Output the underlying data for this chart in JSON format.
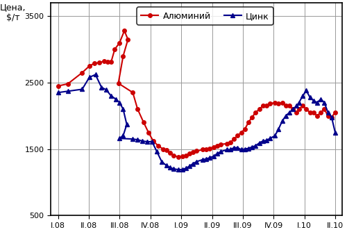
{
  "ylabel": "Цена,\n$/т",
  "ylim": [
    500,
    3700
  ],
  "yticks": [
    500,
    1500,
    2500,
    3500
  ],
  "x_labels": [
    "I.08",
    "II.08",
    "III.08",
    "IV.08",
    "I.09",
    "II.09",
    "III.09",
    "IV.09",
    "I.10",
    "II.10"
  ],
  "aluminum_color": "#cc0000",
  "zinc_color": "#00008b",
  "background_color": "#ffffff",
  "plot_bg_color": "#ffffff",
  "grid_color": "#999999",
  "legend_label_al": "Алюминий",
  "legend_label_zn": "Цинк",
  "al_x": [
    0,
    0.4,
    1.0,
    1.3,
    1.5,
    1.7,
    1.9,
    2.05,
    2.2,
    2.35,
    2.55,
    2.75,
    2.9,
    2.7,
    2.5,
    3.1,
    3.3,
    3.55,
    3.75,
    3.95,
    4.15,
    4.35,
    4.5,
    4.65,
    4.8,
    5.0,
    5.15,
    5.3,
    5.45,
    5.6,
    5.75,
    6.0,
    6.15,
    6.3,
    6.45,
    6.6,
    6.75,
    7.0,
    7.15,
    7.3,
    7.45,
    7.6,
    7.75,
    7.9,
    8.05,
    8.2,
    8.35,
    8.5,
    8.65,
    8.8,
    9.0,
    9.15,
    9.3,
    9.45,
    9.6,
    9.75,
    9.9,
    10.0,
    10.15,
    10.3,
    10.45,
    10.6,
    10.75,
    10.9,
    11.05,
    11.2,
    11.35,
    11.5
  ],
  "al_y": [
    2450,
    2480,
    2650,
    2750,
    2790,
    2800,
    2820,
    2810,
    2810,
    3000,
    3100,
    3280,
    3150,
    2900,
    2490,
    2350,
    2100,
    1900,
    1750,
    1620,
    1550,
    1500,
    1480,
    1440,
    1400,
    1380,
    1390,
    1400,
    1430,
    1450,
    1470,
    1490,
    1500,
    1510,
    1530,
    1550,
    1570,
    1580,
    1600,
    1650,
    1700,
    1750,
    1800,
    1900,
    1980,
    2050,
    2100,
    2150,
    2150,
    2180,
    2200,
    2180,
    2200,
    2150,
    2150,
    2100,
    2050,
    2100,
    2150,
    2100,
    2050,
    2050,
    2000,
    2050,
    2100,
    2000,
    1980,
    2050
  ],
  "zn_x": [
    0,
    0.4,
    1.0,
    1.3,
    1.55,
    1.8,
    2.0,
    2.2,
    2.4,
    2.55,
    2.7,
    2.85,
    2.7,
    2.55,
    3.1,
    3.3,
    3.5,
    3.7,
    3.9,
    4.1,
    4.3,
    4.5,
    4.65,
    4.8,
    5.0,
    5.15,
    5.3,
    5.45,
    5.6,
    5.75,
    6.0,
    6.15,
    6.3,
    6.45,
    6.6,
    6.75,
    7.0,
    7.15,
    7.3,
    7.45,
    7.6,
    7.75,
    7.9,
    8.05,
    8.2,
    8.35,
    8.5,
    8.65,
    8.8,
    9.0,
    9.15,
    9.3,
    9.45,
    9.6,
    9.75,
    9.9,
    10.0,
    10.15,
    10.3,
    10.45,
    10.6,
    10.75,
    10.9,
    11.05,
    11.2,
    11.35,
    11.5
  ],
  "zn_y": [
    2350,
    2370,
    2400,
    2580,
    2620,
    2430,
    2390,
    2300,
    2250,
    2200,
    2100,
    1870,
    1700,
    1660,
    1650,
    1640,
    1620,
    1610,
    1610,
    1460,
    1310,
    1250,
    1220,
    1200,
    1190,
    1190,
    1210,
    1240,
    1280,
    1310,
    1340,
    1350,
    1370,
    1390,
    1430,
    1460,
    1490,
    1490,
    1520,
    1520,
    1490,
    1500,
    1510,
    1530,
    1550,
    1590,
    1620,
    1630,
    1660,
    1700,
    1800,
    1920,
    2000,
    2050,
    2100,
    2150,
    2200,
    2300,
    2380,
    2280,
    2230,
    2200,
    2250,
    2200,
    2050,
    1980,
    1750
  ]
}
